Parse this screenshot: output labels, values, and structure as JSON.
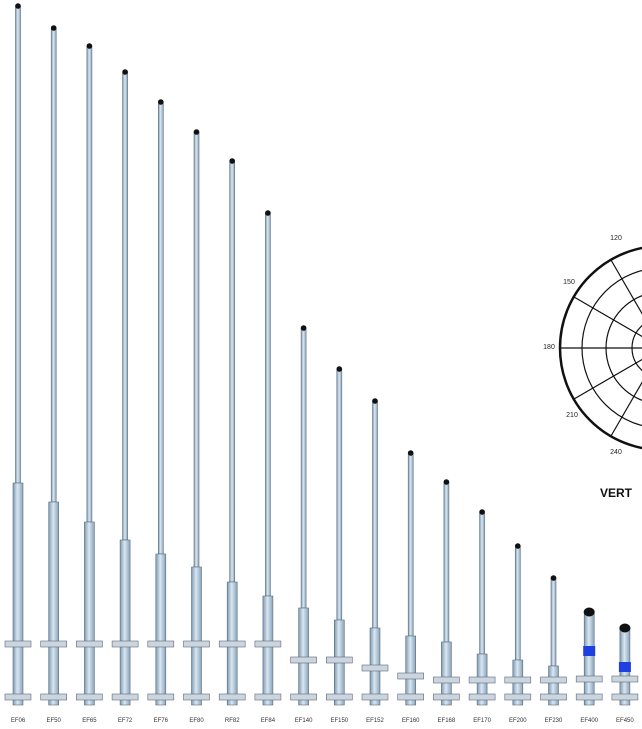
{
  "antennas": [
    {
      "label": "EF06"
    },
    {
      "label": "EF50"
    },
    {
      "label": "EF65"
    },
    {
      "label": "EF72"
    },
    {
      "label": "EF76"
    },
    {
      "label": "EF80"
    },
    {
      "label": "RF82"
    },
    {
      "label": "EF84"
    },
    {
      "label": "EF140"
    },
    {
      "label": "EF150"
    },
    {
      "label": "EF152"
    },
    {
      "label": "EF160"
    },
    {
      "label": "EF168"
    },
    {
      "label": "EF170"
    },
    {
      "label": "EF200"
    },
    {
      "label": "EF230"
    },
    {
      "label": "EF400"
    },
    {
      "label": "EF450"
    }
  ],
  "polar_plot": {
    "angle_labels": [
      "120",
      "150",
      "180",
      "210",
      "240"
    ],
    "caption": "VERT"
  }
}
